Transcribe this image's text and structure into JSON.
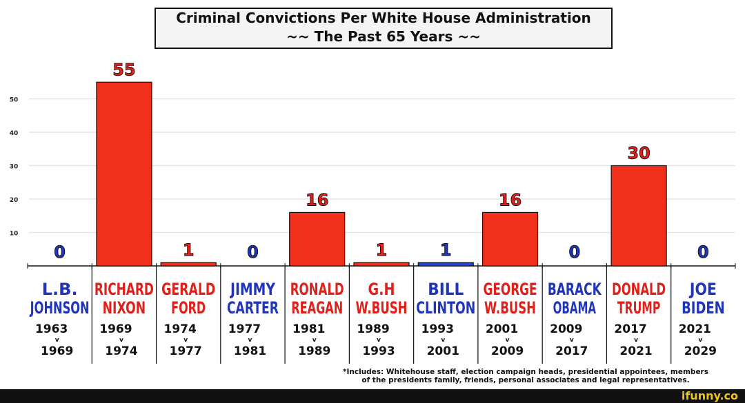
{
  "title_line1": "Criminal Convictions Per White House Administration",
  "title_line2": "~~ The Past 65 Years ~~",
  "footnote_line1": "*Includes: Whitehouse staff, election campaign heads, presidential appointees, members",
  "footnote_line2": "of the presidents family, friends, personal associates and legal representatives.",
  "brand": "ifunny.co",
  "colors": {
    "red": "#f0301a",
    "blue": "#2746c8",
    "label_red": "#e0201a",
    "label_blue": "#2035b8",
    "grid": "#e4e4e4"
  },
  "chart_data": {
    "type": "bar",
    "ylim": [
      0,
      60
    ],
    "yticks": [
      10,
      20,
      30,
      40,
      50
    ],
    "grid": true,
    "categories": [
      {
        "name1": "L.B.",
        "name2": "JOHNSON",
        "start": "1963",
        "end": "1969",
        "value": 0,
        "party": "D"
      },
      {
        "name1": "RICHARD",
        "name2": "NIXON",
        "start": "1969",
        "end": "1974",
        "value": 55,
        "party": "R"
      },
      {
        "name1": "GERALD",
        "name2": "FORD",
        "start": "1974",
        "end": "1977",
        "value": 1,
        "party": "R"
      },
      {
        "name1": "JIMMY",
        "name2": "CARTER",
        "start": "1977",
        "end": "1981",
        "value": 0,
        "party": "D"
      },
      {
        "name1": "RONALD",
        "name2": "REAGAN",
        "start": "1981",
        "end": "1989",
        "value": 16,
        "party": "R"
      },
      {
        "name1": "G.H",
        "name2": "W.BUSH",
        "start": "1989",
        "end": "1993",
        "value": 1,
        "party": "R"
      },
      {
        "name1": "BILL",
        "name2": "CLINTON",
        "start": "1993",
        "end": "2001",
        "value": 1,
        "party": "D"
      },
      {
        "name1": "GEORGE",
        "name2": "W.BUSH",
        "start": "2001",
        "end": "2009",
        "value": 16,
        "party": "R"
      },
      {
        "name1": "BARACK",
        "name2": "OBAMA",
        "start": "2009",
        "end": "2017",
        "value": 0,
        "party": "D"
      },
      {
        "name1": "DONALD",
        "name2": "TRUMP",
        "start": "2017",
        "end": "2021",
        "value": 30,
        "party": "R"
      },
      {
        "name1": "JOE",
        "name2": "BIDEN",
        "start": "2021",
        "end": "2029",
        "value": 0,
        "party": "D"
      }
    ],
    "year_separator": "v"
  }
}
